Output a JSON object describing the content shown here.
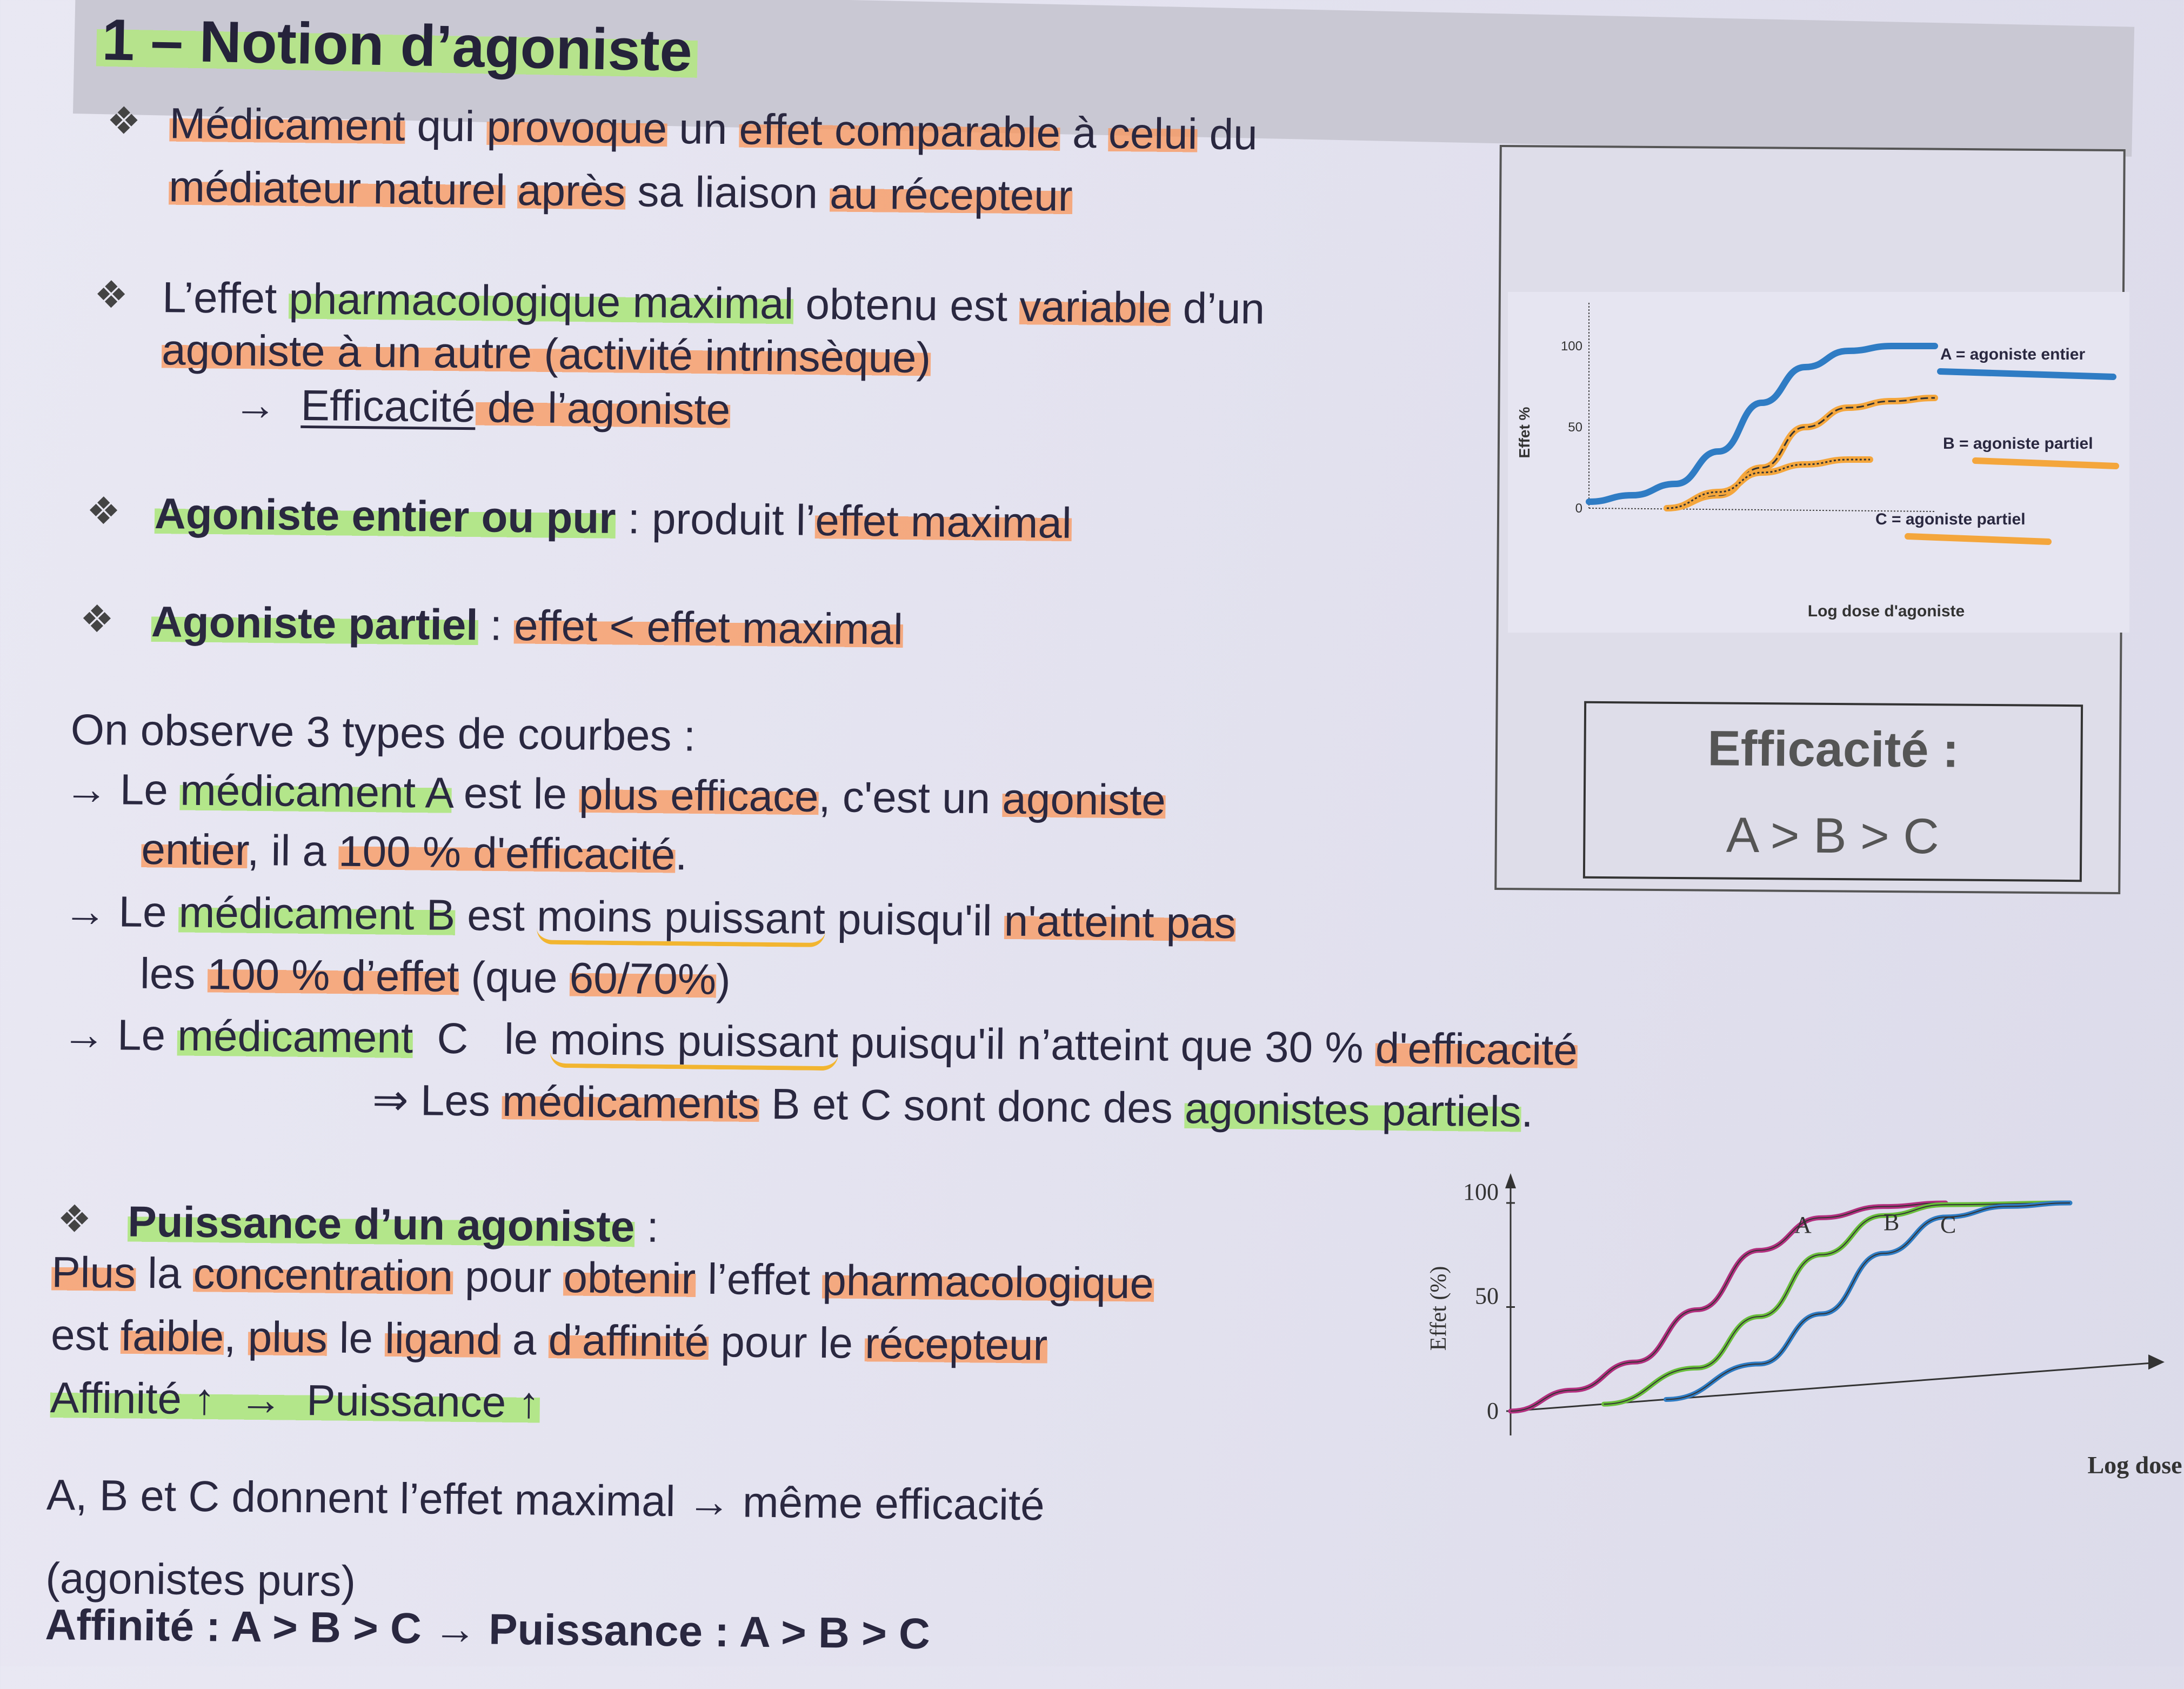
{
  "title": "1 – Notion d’agoniste",
  "bullet_glyph": "❖",
  "colors": {
    "highlight_orange": "#fa965a",
    "highlight_green": "#aae678",
    "underline_yellow": "#f2b530",
    "curve_blue": "#2f7cc4",
    "curve_orange": "#f4a63c",
    "curve_magenta": "#b2307f",
    "curve_green": "#6abf3c"
  },
  "lines": [
    {
      "bullet": true,
      "segs": [
        {
          "t": "Médicament",
          "h": "o"
        },
        {
          "t": " qui "
        },
        {
          "t": "provoque",
          "h": "o"
        },
        {
          "t": " un "
        },
        {
          "t": "effet comparable",
          "h": "o"
        },
        {
          "t": " à "
        },
        {
          "t": "celui",
          "h": "o"
        },
        {
          "t": " du"
        }
      ]
    },
    {
      "segs": [
        {
          "t": "médiateur naturel",
          "h": "o"
        },
        {
          "t": " "
        },
        {
          "t": "après",
          "h": "o"
        },
        {
          "t": " sa liaison "
        },
        {
          "t": "au récepteur",
          "h": "o"
        }
      ]
    },
    {
      "bullet": true,
      "segs": [
        {
          "t": "L’effet "
        },
        {
          "t": "pharmacologique maximal",
          "h": "g"
        },
        {
          "t": " obtenu est "
        },
        {
          "t": "variable",
          "h": "o"
        },
        {
          "t": " d’un"
        }
      ]
    },
    {
      "segs": [
        {
          "t": "agoniste à un autre",
          "h": "o"
        },
        {
          "t": " (activité intrinsèque)",
          "h": "o"
        }
      ]
    },
    {
      "segs": [
        {
          "t": "→  "
        },
        {
          "t": "Efficacité",
          "h": "u"
        },
        {
          "t": " de l’agoniste",
          "h": "o"
        }
      ]
    },
    {
      "bullet": true,
      "segs": [
        {
          "t": "Agoniste entier ou pur",
          "h": "g b"
        },
        {
          "t": " : produit l’"
        },
        {
          "t": "effet maximal",
          "h": "o"
        }
      ]
    },
    {
      "bullet": true,
      "segs": [
        {
          "t": "Agoniste partiel",
          "h": "g b"
        },
        {
          "t": " : "
        },
        {
          "t": "effet < effet maximal",
          "h": "o"
        }
      ]
    },
    {
      "segs": [
        {
          "t": "On observe 3 types de courbes :"
        }
      ]
    },
    {
      "segs": [
        {
          "t": "→ Le "
        },
        {
          "t": "médicament A",
          "h": "g"
        },
        {
          "t": " est le "
        },
        {
          "t": "plus efficace",
          "h": "o"
        },
        {
          "t": ", c'est un "
        },
        {
          "t": "agoniste",
          "h": "o"
        }
      ]
    },
    {
      "segs": [
        {
          "t": "entier",
          "h": "o"
        },
        {
          "t": ", il a "
        },
        {
          "t": "100 % d'efficacité",
          "h": "o"
        },
        {
          "t": "."
        }
      ]
    },
    {
      "segs": [
        {
          "t": "→ Le "
        },
        {
          "t": "médicament B",
          "h": "g"
        },
        {
          "t": " est "
        },
        {
          "t": "moins puissant",
          "h": "y"
        },
        {
          "t": " puisqu'il "
        },
        {
          "t": "n'atteint pas",
          "h": "o"
        }
      ]
    },
    {
      "segs": [
        {
          "t": "les "
        },
        {
          "t": "100 % d’effet",
          "h": "o"
        },
        {
          "t": " (que "
        },
        {
          "t": "60/70%",
          "h": "o"
        },
        {
          "t": ")"
        }
      ]
    },
    {
      "segs": [
        {
          "t": "→ Le "
        },
        {
          "t": "médicament",
          "h": "g"
        },
        {
          "t": "  C  "
        },
        {
          "t": " le "
        },
        {
          "t": "moins puissant",
          "h": "y"
        },
        {
          "t": " puisqu'il n’atteint que 30 % "
        },
        {
          "t": "d'efficacité",
          "h": "o"
        }
      ]
    },
    {
      "segs": [
        {
          "t": "⇒ Les "
        },
        {
          "t": "médicaments",
          "h": "o"
        },
        {
          "t": " B et C sont donc des "
        },
        {
          "t": "agonistes partiels",
          "h": "g"
        },
        {
          "t": "."
        }
      ]
    },
    {
      "bullet": true,
      "segs": [
        {
          "t": "Puissance d’un agoniste",
          "h": "g b"
        },
        {
          "t": " :"
        }
      ]
    },
    {
      "segs": [
        {
          "t": "Plus",
          "h": "o"
        },
        {
          "t": " la "
        },
        {
          "t": "concentration",
          "h": "o"
        },
        {
          "t": " pour "
        },
        {
          "t": "obtenir",
          "h": "o"
        },
        {
          "t": " l’effet "
        },
        {
          "t": "pharmacologique",
          "h": "o"
        }
      ]
    },
    {
      "segs": [
        {
          "t": "est "
        },
        {
          "t": "faible",
          "h": "o"
        },
        {
          "t": ", "
        },
        {
          "t": "plus",
          "h": "o"
        },
        {
          "t": " le "
        },
        {
          "t": "ligand",
          "h": "o"
        },
        {
          "t": " a "
        },
        {
          "t": "d’affinité",
          "h": "o"
        },
        {
          "t": " pour le "
        },
        {
          "t": "récepteur",
          "h": "o"
        }
      ]
    },
    {
      "segs": [
        {
          "t": "Affinité ↑  →  Puissance ↑",
          "h": "g"
        }
      ]
    },
    {
      "segs": [
        {
          "t": "A, B et C donnent l’effet maximal → même efficacité"
        }
      ]
    },
    {
      "segs": [
        {
          "t": "(agonistes purs)"
        }
      ]
    },
    {
      "segs": [
        {
          "t": "Affinité : A > B > C → Puissance : A > B > C",
          "h": "b"
        }
      ]
    }
  ],
  "efficacy_box": {
    "title": "Efficacité :",
    "value": "A > B > C"
  },
  "chart_data": [
    {
      "type": "line",
      "title": "",
      "xlabel": "Log dose d'agoniste",
      "ylabel": "Effet %",
      "yticks": [
        0,
        50,
        100
      ],
      "ylim": [
        0,
        100
      ],
      "grid": false,
      "legend": "right",
      "series": [
        {
          "name": "A = agoniste entier",
          "color": "#2f7cc4",
          "points": [
            [
              0,
              4
            ],
            [
              1,
              8
            ],
            [
              2,
              15
            ],
            [
              3,
              35
            ],
            [
              4,
              65
            ],
            [
              5,
              87
            ],
            [
              6,
              97
            ],
            [
              7,
              100
            ],
            [
              8,
              100
            ]
          ]
        },
        {
          "name": "B = agoniste partiel",
          "color": "#f4a63c",
          "points": [
            [
              1.8,
              0
            ],
            [
              3,
              8
            ],
            [
              4,
              25
            ],
            [
              5,
              50
            ],
            [
              6,
              62
            ],
            [
              7,
              66
            ],
            [
              8,
              68
            ]
          ]
        },
        {
          "name": "C = agoniste partiel",
          "color": "#f4a63c",
          "points": [
            [
              1.8,
              0
            ],
            [
              3,
              10
            ],
            [
              4,
              22
            ],
            [
              5,
              27
            ],
            [
              6,
              30
            ],
            [
              6.5,
              30
            ]
          ]
        }
      ]
    },
    {
      "type": "line",
      "title": "",
      "xlabel": "Log dose",
      "ylabel": "Effet (%)",
      "yticks": [
        0,
        50,
        100
      ],
      "ylim": [
        0,
        100
      ],
      "grid": false,
      "legend": "inline",
      "series": [
        {
          "name": "A",
          "color": "#b2307f",
          "points": [
            [
              0,
              0
            ],
            [
              1,
              8
            ],
            [
              2,
              20
            ],
            [
              3,
              45
            ],
            [
              4,
              75
            ],
            [
              5,
              92
            ],
            [
              6,
              98
            ],
            [
              7,
              100
            ]
          ]
        },
        {
          "name": "B",
          "color": "#6abf3c",
          "points": [
            [
              1.5,
              0
            ],
            [
              3,
              15
            ],
            [
              4,
              40
            ],
            [
              5,
              72
            ],
            [
              6,
              93
            ],
            [
              7,
              99
            ],
            [
              9,
              100
            ]
          ]
        },
        {
          "name": "C",
          "color": "#2f7cc4",
          "points": [
            [
              2.5,
              0
            ],
            [
              4,
              15
            ],
            [
              5,
              40
            ],
            [
              6,
              72
            ],
            [
              7,
              92
            ],
            [
              8,
              98
            ],
            [
              9,
              100
            ]
          ]
        }
      ]
    }
  ]
}
